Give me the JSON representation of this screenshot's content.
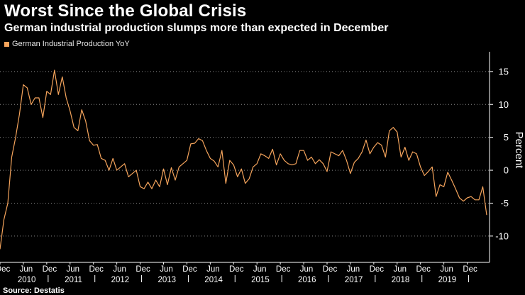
{
  "title": "Worst Since the Global Crisis",
  "subtitle": "German industrial production slumps more than expected in December",
  "source": "Source: Destatis",
  "colors": {
    "series": "#f5a45c",
    "background": "#000000",
    "axis": "#ffffff",
    "grid": "#8a8a8a"
  },
  "chart_data": {
    "type": "line",
    "title": "Worst Since the Global Crisis",
    "subtitle": "German industrial production slumps more than expected in December",
    "xlabel": "",
    "ylabel": "Percent",
    "ylim": [
      -14,
      18
    ],
    "yticks": [
      15,
      10,
      5,
      0,
      -5,
      -10
    ],
    "grid": "horizontal dotted",
    "legend": "top-left",
    "x_start": "2009-12",
    "x_end": "2019-12",
    "month_labels": [
      "Dec",
      "Jun",
      "Jun",
      "Dec",
      "Jun",
      "Dec",
      "Jun",
      "Dec",
      "Jun",
      "Dec",
      "Jun",
      "Dec",
      "Jun",
      "Dec",
      "Jun",
      "Dec",
      "Jun",
      "Dec",
      "Jun",
      "Dec",
      "Jun",
      "Dec"
    ],
    "month_label_index": [
      0,
      6,
      18,
      24,
      30,
      36,
      42,
      48,
      54,
      60,
      66,
      72,
      78,
      84,
      90,
      96,
      102,
      108,
      114,
      120,
      114,
      120
    ],
    "x_ticks": [
      {
        "label": "Dec",
        "i": 0
      },
      {
        "label": "Jun",
        "i": 6
      },
      {
        "label": "Dec",
        "i": 12
      },
      {
        "label": "Jun",
        "i": 18
      },
      {
        "label": "Dec",
        "i": 24
      },
      {
        "label": "Jun",
        "i": 30
      },
      {
        "label": "Dec",
        "i": 36
      },
      {
        "label": "Jun",
        "i": 42
      },
      {
        "label": "Dec",
        "i": 48
      },
      {
        "label": "Jun",
        "i": 54
      },
      {
        "label": "Dec",
        "i": 60
      },
      {
        "label": "Jun",
        "i": 66
      },
      {
        "label": "Dec",
        "i": 72
      },
      {
        "label": "Jun",
        "i": 78
      },
      {
        "label": "Dec",
        "i": 84
      },
      {
        "label": "Jun",
        "i": 90
      },
      {
        "label": "Dec",
        "i": 96
      },
      {
        "label": "Jun",
        "i": 102
      },
      {
        "label": "Dec",
        "i": 108
      },
      {
        "label": "Jun",
        "i": 114
      },
      {
        "label": "Dec",
        "i": 120
      }
    ],
    "year_labels": [
      {
        "label": "2010",
        "i": 6.5
      },
      {
        "label": "2011",
        "i": 18.5
      },
      {
        "label": "2012",
        "i": 30.5
      },
      {
        "label": "2013",
        "i": 42.5
      },
      {
        "label": "2014",
        "i": 54.5
      },
      {
        "label": "2015",
        "i": 66.5
      },
      {
        "label": "2016",
        "i": 78.5
      },
      {
        "label": "2017",
        "i": 90.5
      },
      {
        "label": "2018",
        "i": 102.5
      },
      {
        "label": "2019",
        "i": 114.5
      }
    ],
    "series": [
      {
        "name": "German Industrial Production YoY",
        "values": [
          -12,
          -7.5,
          -5,
          2,
          5,
          8.5,
          13,
          12.5,
          10,
          11,
          11,
          8,
          12,
          11.5,
          15.2,
          11.5,
          14.2,
          11,
          9,
          6.5,
          6,
          9.2,
          7.5,
          4.5,
          3.8,
          3.9,
          1.8,
          1.5,
          0,
          1.8,
          0,
          0.5,
          1,
          -1,
          -0.5,
          0,
          -2.5,
          -2.8,
          -1.8,
          -2.8,
          -1.5,
          -2.5,
          0.2,
          -2.2,
          0.4,
          -1.5,
          0.5,
          1,
          1.5,
          4,
          4.1,
          4.8,
          4.5,
          3,
          1.8,
          1.4,
          0.5,
          3,
          -2,
          1.5,
          0.8,
          -1,
          0.2,
          -2,
          -1.3,
          0.5,
          1,
          2.5,
          2.2,
          1.8,
          3.2,
          0.8,
          2.5,
          1.5,
          1,
          0.8,
          1,
          3,
          3,
          1.5,
          2,
          1,
          1.6,
          1,
          -0.2,
          2.8,
          2.5,
          2.2,
          3,
          1.5,
          -0.5,
          1.2,
          1.8,
          2.8,
          4.6,
          2.5,
          3.5,
          4.2,
          3.8,
          2,
          6,
          6.5,
          5.8,
          2,
          3.5,
          1.5,
          2.8,
          2.5,
          0.5,
          -0.8,
          -0.2,
          0.5,
          -4,
          -2.2,
          -2.5,
          -0.3,
          -1.5,
          -2.8,
          -4.2,
          -4.7,
          -4.2,
          -4,
          -4.5,
          -4.5,
          -2.5,
          -6.8
        ]
      }
    ]
  }
}
